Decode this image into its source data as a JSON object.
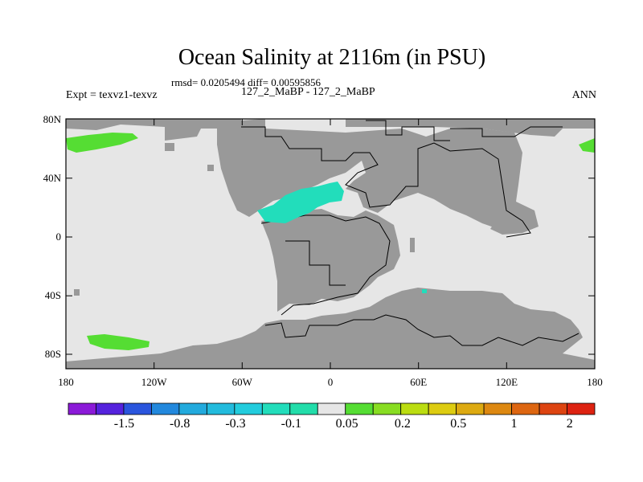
{
  "title": "Ocean Salinity at 2116m (in PSU)",
  "stats": "rmsd= 0.0205494 diff= 0.00595856",
  "expt": "Expt = texvz1-texvz",
  "case": "127_2_MaBP - 127_2_MaBP",
  "season": "ANN",
  "colors": {
    "ocean": "#e6e6e6",
    "land": "#999999",
    "pos_anomaly": "#55dd33",
    "neg_anomaly": "#22ddbb"
  },
  "x_ticks": [
    "180",
    "120W",
    "60W",
    "0",
    "60E",
    "120E",
    "180"
  ],
  "y_ticks": [
    "80N",
    "40N",
    "0",
    "40S",
    "80S"
  ],
  "colorbar": {
    "colors": [
      "#8b1ad8",
      "#5522dd",
      "#2a55dd",
      "#2288dd",
      "#22aadd",
      "#22bbdd",
      "#22ccdd",
      "#22ddbb",
      "#22ddaa",
      "#e6e6e6",
      "#55dd33",
      "#88dd22",
      "#bbdd11",
      "#ddcc11",
      "#ddaa11",
      "#dd8811",
      "#dd6611",
      "#dd4411",
      "#dd2211"
    ],
    "labels": [
      "-1.5",
      "-0.8",
      "-0.3",
      "-0.1",
      "0.05",
      "0.2",
      "0.5",
      "1",
      "2"
    ]
  }
}
